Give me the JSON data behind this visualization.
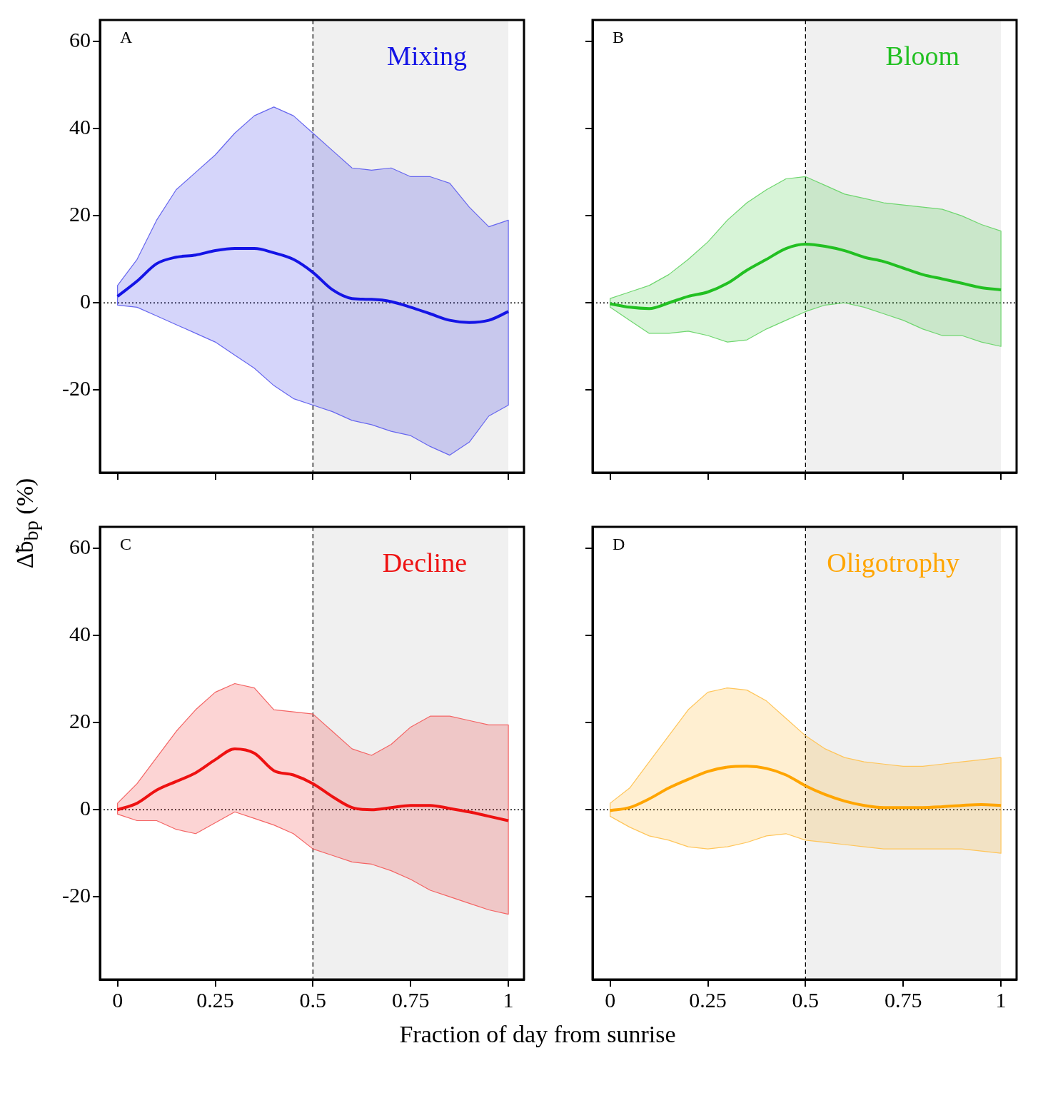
{
  "chart_data": [
    {
      "type": "line",
      "title": "A",
      "ylabel": "Δ̃b$_{bp}$ (%)",
      "x": [
        0,
        0.05,
        0.1,
        0.15,
        0.2,
        0.25,
        0.3,
        0.35,
        0.4,
        0.45,
        0.5,
        0.55,
        0.6,
        0.65,
        0.7,
        0.75,
        0.8,
        0.85,
        0.9,
        0.95,
        1
      ],
      "xlim": [
        -0.045,
        1.04
      ],
      "ylim": [
        -39,
        65
      ],
      "xticks": [
        0,
        0.25,
        0.5,
        0.75,
        1
      ],
      "yticks": [
        -20,
        0,
        20,
        40,
        60
      ],
      "tick_labels": "y",
      "grid": false,
      "legend": false,
      "marker": "none",
      "line_style": "solid",
      "series": [
        {
          "name": "Mixing",
          "color": "#1414e6",
          "values": [
            1.5,
            5,
            9,
            10.5,
            11,
            12,
            12.5,
            12.5,
            11.5,
            10,
            7,
            3,
            1,
            0.8,
            0.3,
            -1,
            -2.5,
            -4,
            -4.5,
            -4,
            -2
          ],
          "upper": [
            4,
            10,
            19,
            26,
            30,
            34,
            39,
            43,
            45,
            43,
            39,
            35,
            31,
            30.5,
            31,
            29,
            29,
            27.5,
            22,
            17.5,
            19
          ],
          "lower": [
            -0.5,
            -1,
            -3,
            -5,
            -7,
            -9,
            -12,
            -15,
            -19,
            -22,
            -23.5,
            -25,
            -27,
            -28,
            -29.5,
            -30.5,
            -33,
            -35,
            -32,
            -26,
            -23.5
          ]
        }
      ],
      "bands": [
        {
          "axis": "x",
          "from": 0.5,
          "to": 1,
          "color": "#f0f0f0"
        }
      ],
      "ref_lines": [
        {
          "axis": "x",
          "value": 0.5,
          "line_style": "dashed",
          "color": "#000000"
        },
        {
          "axis": "y",
          "value": 0,
          "line_style": "dotted",
          "color": "#000000"
        }
      ]
    },
    {
      "type": "line",
      "title": "B",
      "x": [
        0,
        0.05,
        0.1,
        0.15,
        0.2,
        0.25,
        0.3,
        0.35,
        0.4,
        0.45,
        0.5,
        0.55,
        0.6,
        0.65,
        0.7,
        0.75,
        0.8,
        0.85,
        0.9,
        0.95,
        1
      ],
      "xlim": [
        -0.045,
        1.04
      ],
      "ylim": [
        -39,
        65
      ],
      "xticks": [
        0,
        0.25,
        0.5,
        0.75,
        1
      ],
      "yticks": [
        -20,
        0,
        20,
        40,
        60
      ],
      "tick_labels": false,
      "grid": false,
      "legend": false,
      "marker": "none",
      "line_style": "solid",
      "series": [
        {
          "name": "Bloom",
          "color": "#22c022",
          "values": [
            -0.2,
            -1,
            -1.3,
            0,
            1.5,
            2.5,
            4.5,
            7.5,
            10,
            12.5,
            13.5,
            13,
            12,
            10.5,
            9.5,
            8,
            6.5,
            5.5,
            4.5,
            3.5,
            3
          ],
          "upper": [
            1,
            2.5,
            4,
            6.5,
            10,
            14,
            19,
            23,
            26,
            28.5,
            29,
            27,
            25,
            24,
            23,
            22.5,
            22,
            21.5,
            20,
            18,
            16.5
          ],
          "lower": [
            -1,
            -4,
            -7,
            -7,
            -6.5,
            -7.5,
            -9,
            -8.5,
            -6,
            -4,
            -2,
            -0.5,
            0,
            -1,
            -2.5,
            -4,
            -6,
            -7.5,
            -7.5,
            -9,
            -10
          ]
        }
      ],
      "bands": [
        {
          "axis": "x",
          "from": 0.5,
          "to": 1,
          "color": "#f0f0f0"
        }
      ],
      "ref_lines": [
        {
          "axis": "x",
          "value": 0.5,
          "line_style": "dashed",
          "color": "#000000"
        },
        {
          "axis": "y",
          "value": 0,
          "line_style": "dotted",
          "color": "#000000"
        }
      ]
    },
    {
      "type": "line",
      "title": "C",
      "xlabel": "Fraction of day from sunrise",
      "x": [
        0,
        0.05,
        0.1,
        0.15,
        0.2,
        0.25,
        0.3,
        0.35,
        0.4,
        0.45,
        0.5,
        0.55,
        0.6,
        0.65,
        0.7,
        0.75,
        0.8,
        0.85,
        0.9,
        0.95,
        1
      ],
      "xlim": [
        -0.045,
        1.04
      ],
      "ylim": [
        -39,
        65
      ],
      "xticks": [
        0,
        0.25,
        0.5,
        0.75,
        1
      ],
      "yticks": [
        -20,
        0,
        20,
        40,
        60
      ],
      "grid": false,
      "legend": false,
      "marker": "none",
      "line_style": "solid",
      "series": [
        {
          "name": "Decline",
          "color": "#ee1111",
          "values": [
            0,
            1.5,
            4.5,
            6.5,
            8.5,
            11.5,
            14,
            13,
            9,
            8,
            6,
            3,
            0.5,
            0,
            0.5,
            1,
            1,
            0.3,
            -0.5,
            -1.5,
            -2.5
          ],
          "upper": [
            1.5,
            6,
            12,
            18,
            23,
            27,
            29,
            28,
            23,
            22.5,
            22,
            18,
            14,
            12.5,
            15,
            19,
            21.5,
            21.5,
            20.5,
            19.5,
            19.5
          ],
          "lower": [
            -1,
            -2.5,
            -2.5,
            -4.5,
            -5.5,
            -3,
            -0.5,
            -2,
            -3.5,
            -5.5,
            -9,
            -10.5,
            -12,
            -12.5,
            -14,
            -16,
            -18.5,
            -20,
            -21.5,
            -23,
            -24
          ]
        }
      ],
      "bands": [
        {
          "axis": "x",
          "from": 0.5,
          "to": 1,
          "color": "#f0f0f0"
        }
      ],
      "ref_lines": [
        {
          "axis": "x",
          "value": 0.5,
          "line_style": "dashed",
          "color": "#000000"
        },
        {
          "axis": "y",
          "value": 0,
          "line_style": "dotted",
          "color": "#000000"
        }
      ]
    },
    {
      "type": "line",
      "title": "D",
      "x": [
        0,
        0.05,
        0.1,
        0.15,
        0.2,
        0.25,
        0.3,
        0.35,
        0.4,
        0.45,
        0.5,
        0.55,
        0.6,
        0.65,
        0.7,
        0.75,
        0.8,
        0.85,
        0.9,
        0.95,
        1
      ],
      "xlim": [
        -0.045,
        1.04
      ],
      "ylim": [
        -39,
        65
      ],
      "xticks": [
        0,
        0.25,
        0.5,
        0.75,
        1
      ],
      "yticks": [
        -20,
        0,
        20,
        40,
        60
      ],
      "tick_labels": "x",
      "grid": false,
      "legend": false,
      "marker": "none",
      "line_style": "solid",
      "series": [
        {
          "name": "Oligotrophy",
          "color": "#ffa500",
          "values": [
            -0.2,
            0.5,
            2.5,
            5,
            7,
            8.8,
            9.8,
            10,
            9.5,
            8,
            5.5,
            3.5,
            2,
            1,
            0.5,
            0.5,
            0.5,
            0.7,
            1,
            1.2,
            1
          ],
          "upper": [
            1.5,
            5,
            11,
            17,
            23,
            27,
            28,
            27.5,
            25,
            21,
            17,
            14,
            12,
            11,
            10.5,
            10,
            10,
            10.5,
            11,
            11.5,
            12
          ],
          "lower": [
            -1.5,
            -4,
            -6,
            -7,
            -8.5,
            -9,
            -8.5,
            -7.5,
            -6,
            -5.5,
            -7,
            -7.5,
            -8,
            -8.5,
            -9,
            -9,
            -9,
            -9,
            -9,
            -9.5,
            -10
          ]
        }
      ],
      "bands": [
        {
          "axis": "x",
          "from": 0.5,
          "to": 1,
          "color": "#f0f0f0"
        }
      ],
      "ref_lines": [
        {
          "axis": "x",
          "value": 0.5,
          "line_style": "dashed",
          "color": "#000000"
        },
        {
          "axis": "y",
          "value": 0,
          "line_style": "dotted",
          "color": "#000000"
        }
      ]
    }
  ]
}
